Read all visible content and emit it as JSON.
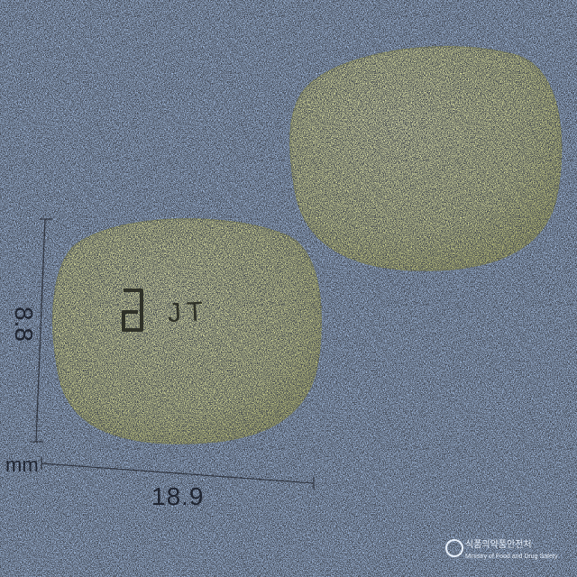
{
  "image": {
    "background_color": "#a9c4ea",
    "pill_color": "#e5e99f",
    "pill_shade_color": "#c9cd78",
    "ruler_color": "#1f2430"
  },
  "pill_front": {
    "imprint_logo": "abbott-logo-icon",
    "imprint_text": "JT"
  },
  "measurements": {
    "height_value": "8.8",
    "width_value": "18.9",
    "unit": "mm"
  },
  "watermark": {
    "icon": "agency-emblem-icon",
    "main_text": "식품의약품안전처",
    "sub_text": "Ministry of Food and Drug Safety"
  }
}
